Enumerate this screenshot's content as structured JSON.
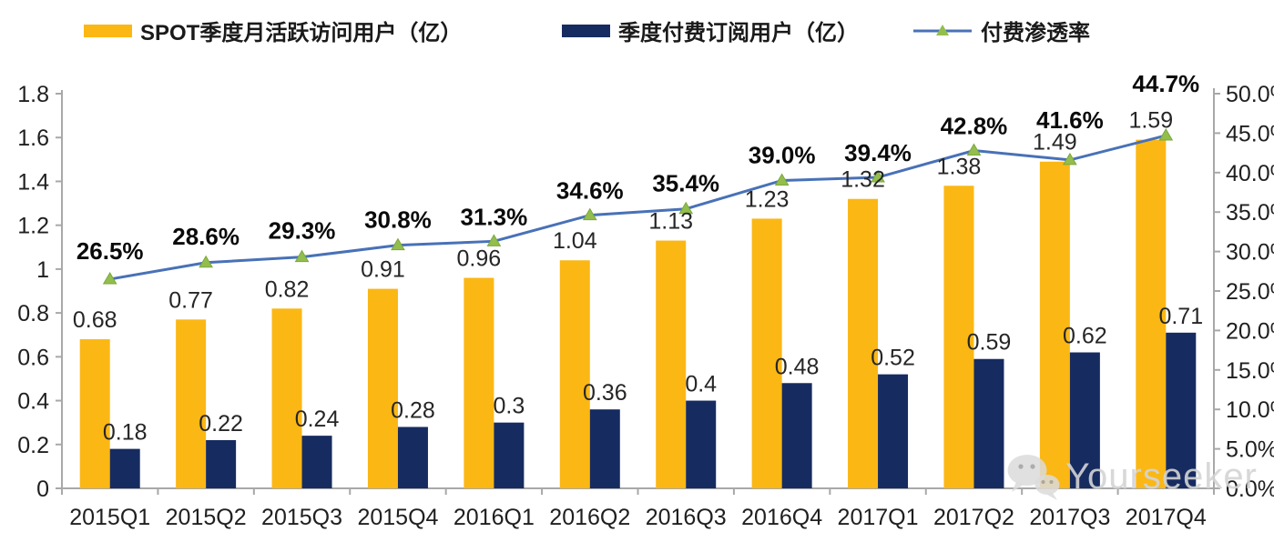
{
  "legend": [
    {
      "label": "SPOT季度月活跃访问用户（亿）",
      "type": "bar",
      "color": "#FBB714"
    },
    {
      "label": "季度付费订阅用户（亿）",
      "type": "bar",
      "color": "#162B60"
    },
    {
      "label": "付费渗透率",
      "type": "line",
      "color": "#4871B7",
      "marker_color": "#93BE4E"
    }
  ],
  "watermark": {
    "text": "Yourseeker",
    "icon": "wechat-icon",
    "color": "#D4D4D4"
  },
  "chart_data": {
    "type": "combo-bar-line",
    "categories": [
      "2015Q1",
      "2015Q2",
      "2015Q3",
      "2015Q4",
      "2016Q1",
      "2016Q2",
      "2016Q3",
      "2016Q4",
      "2017Q1",
      "2017Q2",
      "2017Q3",
      "2017Q4"
    ],
    "series": [
      {
        "name": "SPOT季度月活跃访问用户（亿）",
        "type": "bar",
        "axis": "left",
        "color": "#FBB714",
        "values": [
          0.68,
          0.77,
          0.82,
          0.91,
          0.96,
          1.04,
          1.13,
          1.23,
          1.32,
          1.38,
          1.49,
          1.59
        ],
        "labels": [
          "0.68",
          "0.77",
          "0.82",
          "0.91",
          "0.96",
          "1.04",
          "1.13",
          "1.23",
          "1.32",
          "1.38",
          "1.49",
          "1.59"
        ]
      },
      {
        "name": "季度付费订阅用户（亿）",
        "type": "bar",
        "axis": "left",
        "color": "#162B60",
        "values": [
          0.18,
          0.22,
          0.24,
          0.28,
          0.3,
          0.36,
          0.4,
          0.48,
          0.52,
          0.59,
          0.62,
          0.71
        ],
        "labels": [
          "0.18",
          "0.22",
          "0.24",
          "0.28",
          "0.3",
          "0.36",
          "0.4",
          "0.48",
          "0.52",
          "0.59",
          "0.62",
          "0.71"
        ]
      },
      {
        "name": "付费渗透率",
        "type": "line",
        "axis": "right",
        "color": "#4871B7",
        "marker": "triangle",
        "marker_color": "#93BE4E",
        "values": [
          26.5,
          28.6,
          29.3,
          30.8,
          31.3,
          34.6,
          35.4,
          39.0,
          39.4,
          42.8,
          41.6,
          44.7
        ],
        "labels": [
          "26.5%",
          "28.6%",
          "29.3%",
          "30.8%",
          "31.3%",
          "34.6%",
          "35.4%",
          "39.0%",
          "39.4%",
          "42.8%",
          "41.6%",
          "44.7%"
        ]
      }
    ],
    "left_axis": {
      "min": 0,
      "max": 1.8,
      "step": 0.2,
      "ticks": [
        "0",
        "0.2",
        "0.4",
        "0.6",
        "0.8",
        "1",
        "1.2",
        "1.4",
        "1.6",
        "1.8"
      ]
    },
    "right_axis": {
      "min": 0,
      "max": 50,
      "step": 5,
      "unit": "%",
      "ticks": [
        "0.0%",
        "5.0%",
        "10.0%",
        "15.0%",
        "20.0%",
        "25.0%",
        "30.0%",
        "35.0%",
        "40.0%",
        "45.0%",
        "50.0%"
      ]
    },
    "grid": false,
    "legend_position": "top"
  }
}
